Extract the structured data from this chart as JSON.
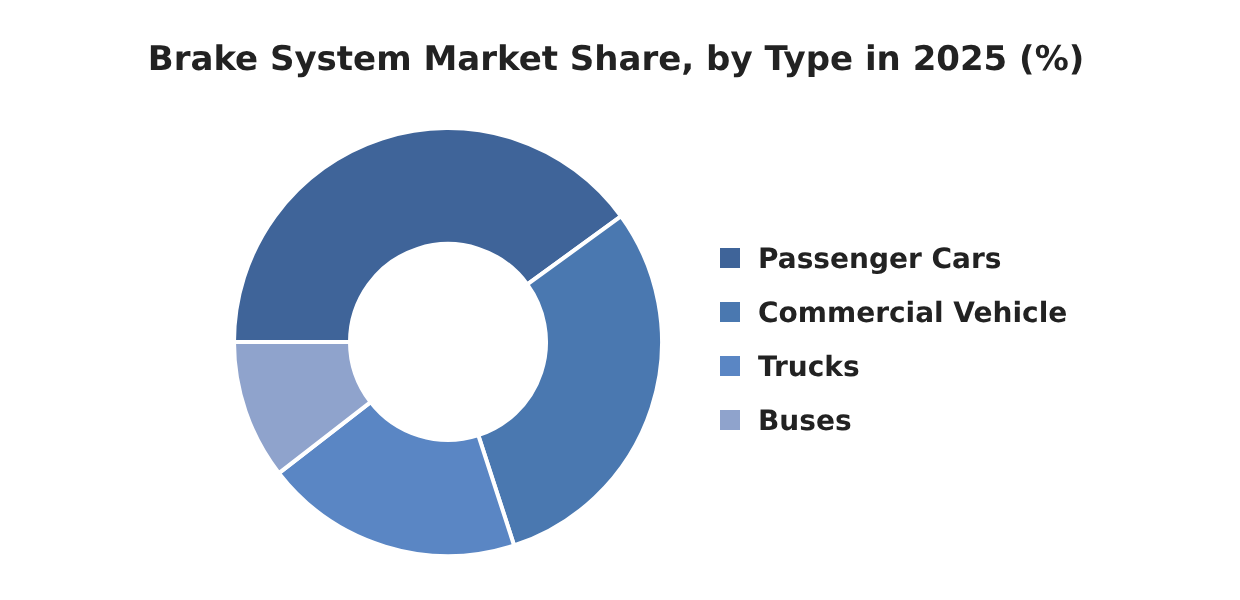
{
  "chart_data": {
    "type": "donut",
    "title": "Brake System Market Share, by Type in 2025 (%)",
    "categories": [
      "Passenger Cars",
      "Commercial Vehicle",
      "Trucks",
      "Buses"
    ],
    "values": [
      40,
      30,
      19.5,
      10.5
    ],
    "colors": [
      "#3f6499",
      "#4a78b0",
      "#5a86c4",
      "#8fa3cc"
    ],
    "legend": "right"
  }
}
